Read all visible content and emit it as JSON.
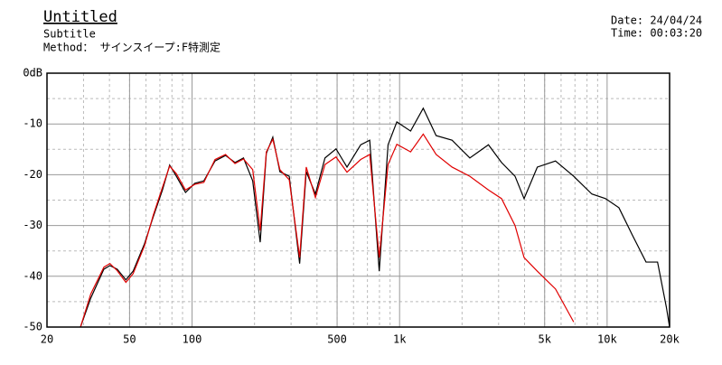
{
  "title": "Untitled",
  "subtitle": "Subtitle",
  "method": "Method： サインスイープ:F特測定",
  "date": "Date: 24/04/24",
  "time": "Time: 00:03:20",
  "chart_data": {
    "type": "line",
    "xscale": "log",
    "grid": true,
    "minor_grid": true,
    "x": [
      29,
      32.5,
      37.6,
      40.2,
      43.6,
      48,
      52,
      59,
      65,
      72,
      78,
      84,
      93,
      103,
      114,
      129,
      145,
      161,
      177,
      196,
      213,
      228,
      245,
      265,
      294,
      330,
      355,
      393,
      437,
      494,
      558,
      650,
      718,
      798,
      880,
      970,
      1130,
      1300,
      1500,
      1790,
      2180,
      2680,
      3100,
      3600,
      3980,
      4610,
      5640,
      6900,
      8440,
      9820,
      11400,
      13200,
      15400,
      17500,
      19300,
      20000
    ],
    "series": [
      {
        "color": "#000000",
        "values": [
          -50,
          -44.3,
          -38.6,
          -37.9,
          -38.6,
          -40.7,
          -39,
          -33.6,
          -28.3,
          -23,
          -18.1,
          -20.3,
          -23.5,
          -21.7,
          -21.2,
          -17.3,
          -16.2,
          -17.6,
          -16.7,
          -21.2,
          -33.3,
          -15.8,
          -12.6,
          -19.4,
          -20.3,
          -37.5,
          -19.4,
          -23.8,
          -16.7,
          -14.9,
          -18.5,
          -14.1,
          -13.2,
          -39,
          -14.1,
          -9.6,
          -11.4,
          -6.9,
          -12.3,
          -13.2,
          -16.7,
          -14.1,
          -17.6,
          -20.3,
          -24.7,
          -18.5,
          -17.3,
          -20.3,
          -23.8,
          -24.7,
          -26.5,
          -31.8,
          -37.2,
          -37.2,
          -46.1,
          -50
        ]
      },
      {
        "color": "#e00000",
        "values": [
          -50,
          -43.5,
          -38.2,
          -37.5,
          -38.9,
          -41.2,
          -39.5,
          -34,
          -28,
          -22.5,
          -18.3,
          -19.8,
          -23,
          -21.9,
          -21.5,
          -17,
          -16,
          -17.8,
          -16.9,
          -19,
          -31,
          -15.5,
          -13,
          -19,
          -21,
          -36.3,
          -18.5,
          -24.5,
          -18,
          -16.5,
          -19.5,
          -17,
          -16,
          -36.3,
          -18,
          -14,
          -15.5,
          -12,
          -16,
          -18.5,
          -20.3,
          -23,
          -24.7,
          -30,
          -36.3,
          -39,
          -42.5,
          -49,
          null,
          null,
          null,
          null,
          null,
          null,
          null,
          null
        ]
      }
    ],
    "xlim": [
      20,
      20000
    ],
    "ylim": [
      -50,
      0
    ],
    "xticks": [
      20,
      50,
      100,
      500,
      {
        "value": 1000,
        "label": "1k"
      },
      {
        "value": 5000,
        "label": "5k"
      },
      {
        "value": 10000,
        "label": "10k"
      },
      {
        "value": 20000,
        "label": "20k"
      }
    ],
    "yticks": [
      {
        "value": 0,
        "label": "0dB"
      },
      -10,
      -20,
      -30,
      -40,
      -50
    ]
  }
}
